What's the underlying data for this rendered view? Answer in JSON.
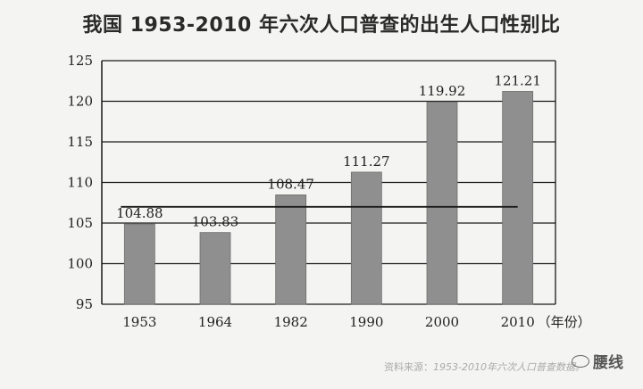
{
  "chart_data": {
    "type": "bar",
    "title": "我国 1953-2010 年六次人口普查的出生人口性别比",
    "categories": [
      "1953",
      "1964",
      "1982",
      "1990",
      "2000",
      "2010"
    ],
    "values": [
      104.88,
      103.83,
      108.47,
      111.27,
      119.92,
      121.21
    ],
    "value_labels": [
      "104.88",
      "103.83",
      "108.47",
      "111.27",
      "119.92",
      "121.21"
    ],
    "xlabel": "（年份）",
    "ylabel": "",
    "ylim": [
      95,
      125
    ],
    "yticks": [
      "95",
      "100",
      "105",
      "110",
      "115",
      "120",
      "125"
    ],
    "reference_line": 107,
    "grid": true,
    "bar_color": "#8f8f8f"
  },
  "source": {
    "prefix": "资料来源：",
    "text": "1953-2010年六次人口普查数据。"
  },
  "watermark": {
    "text": "腰线"
  }
}
